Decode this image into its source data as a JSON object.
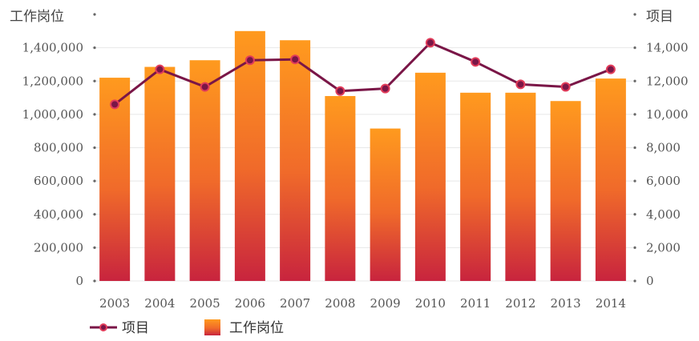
{
  "chart_data": {
    "type": "bar",
    "categories": [
      "2003",
      "2004",
      "2005",
      "2006",
      "2007",
      "2008",
      "2009",
      "2010",
      "2011",
      "2012",
      "2013",
      "2014"
    ],
    "series": [
      {
        "name": "工作岗位",
        "type": "bar",
        "axis": "left",
        "values": [
          1220000,
          1285000,
          1325000,
          1500000,
          1445000,
          1110000,
          915000,
          1250000,
          1130000,
          1130000,
          1080000,
          1215000
        ]
      },
      {
        "name": "项目",
        "type": "line",
        "axis": "right",
        "values": [
          10600,
          12700,
          11650,
          13250,
          13300,
          11400,
          11550,
          14300,
          13150,
          11800,
          11650,
          12700
        ]
      }
    ],
    "left_axis": {
      "label": "工作岗位",
      "ylim": [
        0,
        1600000
      ],
      "ticks": [
        "0",
        "200,000",
        "400,000",
        "600,000",
        "800,000",
        "1,000,000",
        "1,200,000",
        "1,400,000"
      ]
    },
    "right_axis": {
      "label": "项目",
      "ylim": [
        0,
        16000
      ],
      "ticks": [
        "0",
        "2,000",
        "4,000",
        "6,000",
        "8,000",
        "10,000",
        "12,000",
        "14,000"
      ]
    },
    "grid": true,
    "legend_position": "bottom-left",
    "colors": {
      "bar_top": "#FF9A1E",
      "bar_mid": "#F06A2A",
      "bar_bottom": "#C8243E",
      "line": "#7A1647",
      "marker_stroke": "#E23C5A",
      "grid": "#E8E8E8",
      "axis_dot": "#666666"
    }
  }
}
